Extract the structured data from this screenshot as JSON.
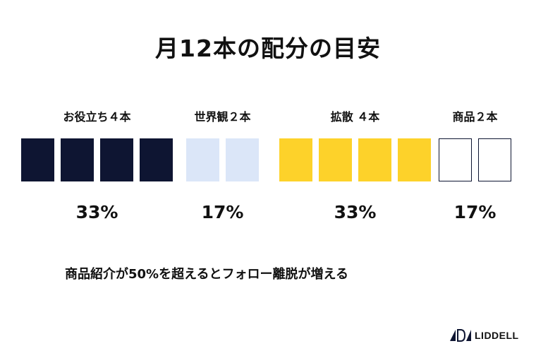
{
  "title": "月12本の配分の目安",
  "note": "商品紹介が50%を超えるとフォロー離脱が増える",
  "brand": "LIDDELL",
  "chart_data": {
    "type": "bar",
    "title": "月12本の配分の目安",
    "categories": [
      "お役立ち４本",
      "世界観２本",
      "拡散 ４本",
      "商品２本"
    ],
    "series": [
      {
        "name": "",
        "values": [
          4,
          2,
          4,
          2
        ]
      }
    ],
    "percent_labels": [
      "33%",
      "17%",
      "33%",
      "17%"
    ],
    "colors": [
      "#0e1532",
      "#dbe6f8",
      "#fdd22a",
      "#ffffff"
    ],
    "outline_color": "#0e1532"
  }
}
